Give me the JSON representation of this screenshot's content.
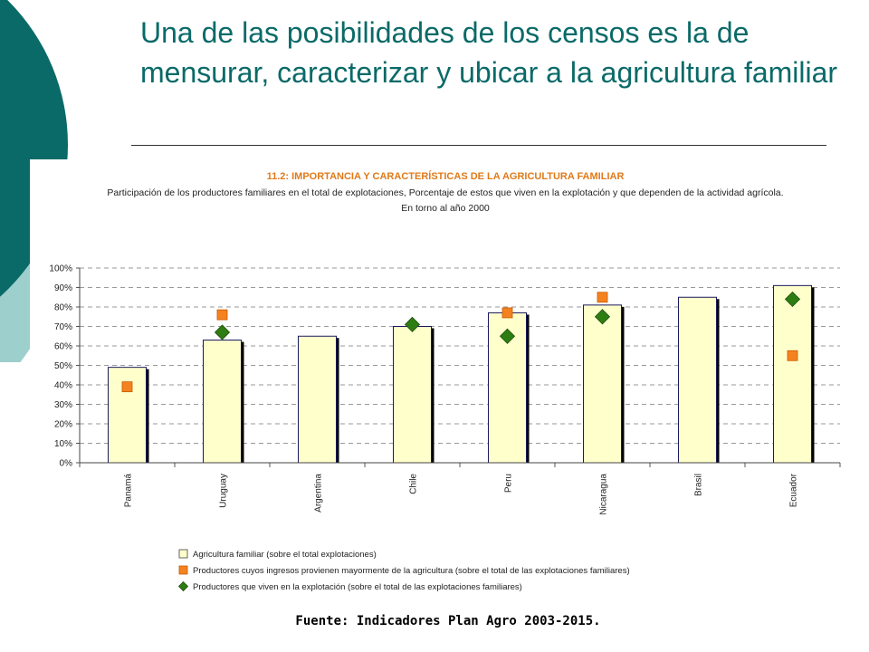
{
  "slide": {
    "title": "Una de las posibilidades de los censos es la de mensurar, caracterizar y ubicar a la agricultura familiar",
    "source": "Fuente: Indicadores Plan Agro 2003-2015."
  },
  "colors": {
    "title": "#0a6a68",
    "deco_dark": "#0a6a68",
    "deco_light": "#9dcfcd",
    "bar_fill": "#ffffcc",
    "bar_edge": "#1a1a5e",
    "bar_shadow": "#000000",
    "chart_title": "#e07a1a",
    "square": "#f58220",
    "diamond": "#2e7d12"
  },
  "chart_data": {
    "type": "bar",
    "title": "11.2: IMPORTANCIA Y CARACTERÍSTICAS DE LA AGRICULTURA FAMILIAR",
    "subtitle": [
      "Participación de los productores familiares en el total de explotaciones, Porcentaje de estos que viven en la explotación y que dependen de la actividad agrícola.",
      "En torno al año 2000"
    ],
    "categories": [
      "Panamá",
      "Uruguay",
      "Argentina",
      "Chile",
      "Peru",
      "Nicaragua",
      "Brasil",
      "Ecuador"
    ],
    "yticks": [
      "0%",
      "10%",
      "20%",
      "30%",
      "40%",
      "50%",
      "60%",
      "70%",
      "80%",
      "90%",
      "100%"
    ],
    "ylim": [
      0,
      100
    ],
    "grid": true,
    "legend_position": "bottom-center",
    "series": [
      {
        "name": "Agricultura familiar (sobre el total explotaciones)",
        "marker": "bar",
        "values": [
          49,
          63,
          65,
          70,
          77,
          81,
          85,
          91
        ]
      },
      {
        "name": "Productores cuyos ingresos provienen mayormente de la agricultura (sobre el total de las explotaciones familiares)",
        "marker": "square",
        "values": [
          39,
          76,
          null,
          null,
          77,
          85,
          null,
          55
        ]
      },
      {
        "name": "Productores que viven en la explotación (sobre el total de las explotaciones familiares)",
        "marker": "diamond",
        "values": [
          null,
          67,
          null,
          71,
          65,
          75,
          null,
          84
        ]
      }
    ]
  }
}
